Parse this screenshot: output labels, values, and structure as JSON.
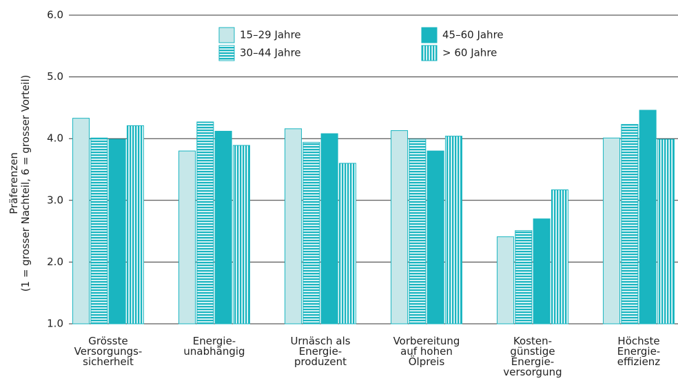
{
  "chart_data": {
    "type": "bar",
    "ylabel": [
      "Präferenzen",
      "(1 = grosser Nachteil, 6 = grosser Vorteil)"
    ],
    "categories": [
      "Grösste\nVersorgungs-\nsicherheit",
      "Energie-\nunabhängig",
      "Urnäsch als\nEnergie-\nproduzent",
      "Vorbereitung\nauf hohen\nÖlpreis",
      "Kosten-\ngünstige\nEnergie-\nversorgung",
      "Höchste\nEnergie-\neffizienz"
    ],
    "series": [
      {
        "name": "15–29 Jahre",
        "color": "#c6e7e9",
        "pattern": "solid",
        "values": [
          4.33,
          3.8,
          4.16,
          4.13,
          2.41,
          4.01
        ]
      },
      {
        "name": "30–44 Jahre",
        "color": "#1ab5c0",
        "pattern": "horizontal",
        "values": [
          4.01,
          4.27,
          3.94,
          3.99,
          2.51,
          4.23
        ]
      },
      {
        "name": "45–60 Jahre",
        "color": "#1ab5c0",
        "pattern": "solid",
        "values": [
          3.99,
          4.12,
          4.08,
          3.8,
          2.7,
          4.46
        ]
      },
      {
        "name": "> 60 Jahre",
        "color": "#1ab5c0",
        "pattern": "vertical",
        "values": [
          4.21,
          3.89,
          3.6,
          4.04,
          3.17,
          3.99
        ]
      }
    ],
    "edgecolor": "#1ab5c0",
    "ylim": [
      1,
      6
    ],
    "yticks": [
      {
        "value": 1,
        "label": "1.0"
      },
      {
        "value": 2,
        "label": "2.0"
      },
      {
        "value": 3,
        "label": "3.0"
      },
      {
        "value": 4,
        "label": "4.0"
      },
      {
        "value": 5,
        "label": "5.0"
      },
      {
        "value": 6,
        "label": "6.0"
      }
    ],
    "grid": true
  }
}
